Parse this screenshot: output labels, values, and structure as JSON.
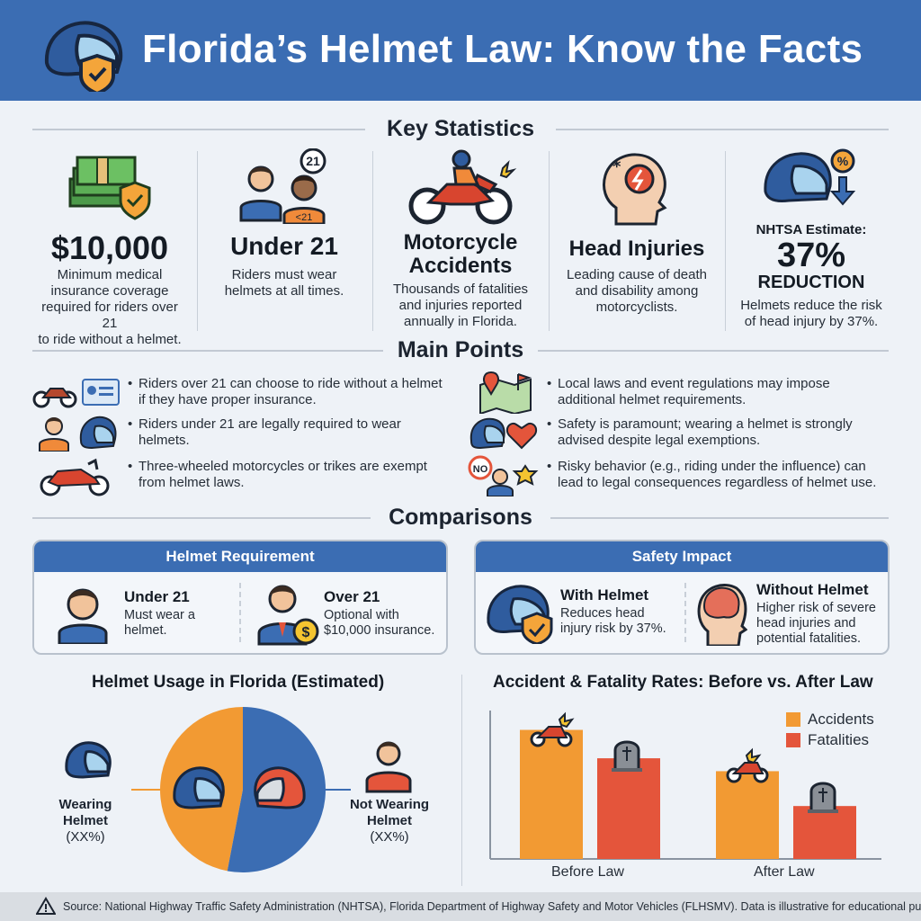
{
  "header": {
    "title": "Florida’s Helmet Law: Know the Facts"
  },
  "sections": {
    "key_statistics": "Key Statistics",
    "main_points": "Main Points",
    "comparisons": "Comparisons"
  },
  "stats": [
    {
      "icon": "money-shield-icon",
      "value": "$10,000",
      "desc": [
        "Minimum medical",
        "insurance coverage",
        "required for riders over 21",
        "to ride without a helmet."
      ]
    },
    {
      "icon": "age-riders-icon",
      "value": "Under 21",
      "badge_top": "21",
      "badge_shirt": "<21",
      "desc": [
        "Riders must wear",
        "helmets at all times."
      ]
    },
    {
      "icon": "motorcycle-accident-icon",
      "value": [
        "Motorcycle",
        "Accidents"
      ],
      "desc": [
        "Thousands of fatalities",
        "and injuries reported",
        "annually in Florida."
      ]
    },
    {
      "icon": "head-injury-icon",
      "value": "Head Injuries",
      "desc": [
        "Leading cause of death",
        "and disability among",
        "motorcyclists."
      ]
    },
    {
      "icon": "helmet-percent-icon",
      "kicker": "NHTSA Estimate:",
      "value": "37%",
      "sub": "REDUCTION",
      "desc": [
        "Helmets reduce the risk",
        "of head injury by 37%."
      ]
    }
  ],
  "main_points": {
    "left": [
      {
        "icons": [
          "motorcycle-icon",
          "id-card-icon"
        ],
        "text": [
          "Riders over 21 can choose to ride without a helmet",
          "if they have proper insurance."
        ]
      },
      {
        "icons": [
          "young-rider-icon",
          "helmet-icon"
        ],
        "text": [
          "Riders under 21 are legally required to wear",
          "helmets."
        ]
      },
      {
        "icons": [
          "trike-icon"
        ],
        "text": [
          "Three-wheeled motorcycles or trikes are exempt",
          "from helmet laws."
        ]
      }
    ],
    "right": [
      {
        "icons": [
          "map-pin-icon"
        ],
        "text": [
          "Local laws and event regulations may impose",
          "additional helmet requirements."
        ]
      },
      {
        "icons": [
          "helmet-heart-icon"
        ],
        "text": [
          "Safety is paramount; wearing a helmet is strongly",
          "advised despite legal exemptions."
        ]
      },
      {
        "icons": [
          "police-badge-icon"
        ],
        "no_sign": "NO",
        "text": [
          "Risky behavior (e.g., riding under the influence) can",
          "lead to legal consequences regardless of helmet use."
        ]
      }
    ]
  },
  "comparisons": {
    "helmet_requirement": {
      "title": "Helmet Requirement",
      "a_head": "Under 21",
      "a_desc": [
        "Must wear a",
        "helmet."
      ],
      "b_head": "Over 21",
      "b_desc": [
        "Optional with",
        "$10,000 insurance."
      ],
      "dollar": "$"
    },
    "safety_impact": {
      "title": "Safety Impact",
      "a_head": "With Helmet",
      "a_desc": [
        "Reduces head",
        "injury risk by 37%."
      ],
      "b_head": "Without Helmet",
      "b_desc": [
        "Higher risk of severe",
        "head injuries and",
        "potential fatalities."
      ]
    }
  },
  "pie": {
    "title": "Helmet Usage in Florida (Estimated)",
    "left_label": [
      "Wearing",
      "Helmet",
      "(XX%)"
    ],
    "right_label": [
      "Not Wearing",
      "Helmet",
      "(XX%)"
    ]
  },
  "bar": {
    "title": "Accident & Fatality Rates: Before vs. After Law",
    "legend": [
      "Accidents",
      "Fatalities"
    ]
  },
  "chart_data": [
    {
      "type": "pie",
      "title": "Helmet Usage in Florida (Estimated)",
      "categories": [
        "Wearing Helmet",
        "Not Wearing Helmet"
      ],
      "values": [
        47,
        53
      ],
      "labels": [
        "(XX%)",
        "(XX%)"
      ],
      "colors": [
        "#f29a33",
        "#3b6db3"
      ]
    },
    {
      "type": "bar",
      "title": "Accident & Fatality Rates: Before vs. After Law",
      "categories": [
        "Before Law",
        "After Law"
      ],
      "series": [
        {
          "name": "Accidents",
          "values": [
            100,
            68
          ],
          "color": "#f29a33"
        },
        {
          "name": "Fatalities",
          "values": [
            78,
            41
          ],
          "color": "#e4553b"
        }
      ],
      "ylim": [
        0,
        115
      ],
      "legend": "top-right",
      "grid": false
    }
  ],
  "footer": {
    "text": "Source: National Highway Traffic Safety Administration (NHTSA), Florida Department of Highway Safety and Motor Vehicles (FLHSMV). Data is illustrative for educational purposes."
  }
}
